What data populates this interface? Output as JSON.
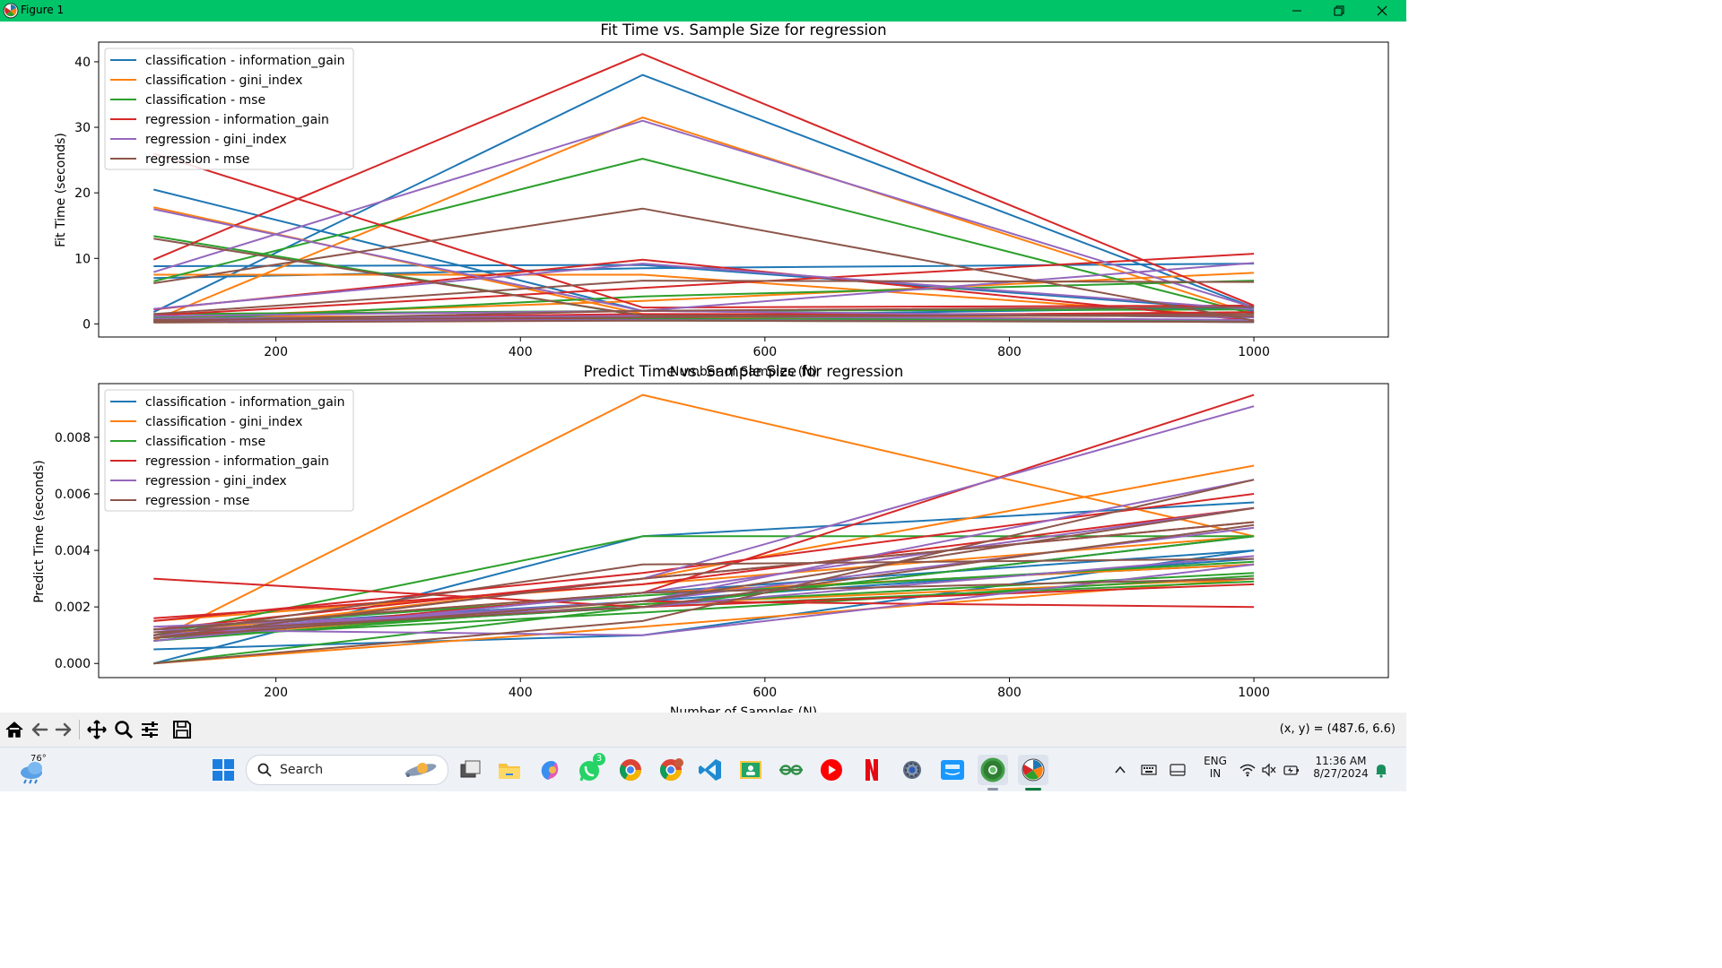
{
  "window": {
    "title": "Figure 1",
    "accent": "#00c468"
  },
  "charts": {
    "series_colors": [
      "#1f77b4",
      "#ff7f0e",
      "#2ca02c",
      "#d62728",
      "#9467bd",
      "#8c564b"
    ],
    "legend": [
      "classification - information_gain",
      "classification - gini_index",
      "classification - mse",
      "regression - information_gain",
      "regression - gini_index",
      "regression - mse"
    ],
    "fit": {
      "title": "Fit Time vs. Sample Size for regression",
      "xlabel": "Number of Samples (N)",
      "ylabel": "Fit Time (seconds)",
      "xticks": [
        "200",
        "400",
        "600",
        "800",
        "1000"
      ],
      "yticks": [
        "0",
        "10",
        "20",
        "30",
        "40"
      ]
    },
    "predict": {
      "title": "Predict Time vs. Sample Size for regression",
      "xlabel": "Number of Samples (N)",
      "ylabel": "Predict Time (seconds)",
      "xticks": [
        "200",
        "400",
        "600",
        "800",
        "1000"
      ],
      "yticks": [
        "0.000",
        "0.002",
        "0.004",
        "0.006",
        "0.008"
      ]
    }
  },
  "chart_data": [
    {
      "type": "line",
      "title": "Fit Time vs. Sample Size for regression",
      "xlabel": "Number of Samples (N)",
      "ylabel": "Fit Time (seconds)",
      "xlim": [
        55,
        1110
      ],
      "ylim": [
        -2,
        43
      ],
      "grid": false,
      "legend_position": "top-left",
      "x": [
        100,
        500,
        1000
      ],
      "series": [
        {
          "name": "classification - information_gain",
          "color": "#1f77b4",
          "lines": [
            [
              20.5,
              2.0,
              1.0
            ],
            [
              8.8,
              9.0,
              2.0
            ],
            [
              1.0,
              1.2,
              2.5
            ],
            [
              0.5,
              0.8,
              0.3
            ],
            [
              1.8,
              38.0,
              2.5
            ],
            [
              7.0,
              8.5,
              9.2
            ]
          ]
        },
        {
          "name": "classification - gini_index",
          "color": "#ff7f0e",
          "lines": [
            [
              17.8,
              1.5,
              0.5
            ],
            [
              7.5,
              7.5,
              1.0
            ],
            [
              1.2,
              1.0,
              0.5
            ],
            [
              0.6,
              31.5,
              1.5
            ],
            [
              1.0,
              3.5,
              7.8
            ],
            [
              0.3,
              0.6,
              0.4
            ]
          ]
        },
        {
          "name": "classification - mse",
          "color": "#2ca02c",
          "lines": [
            [
              13.4,
              1.2,
              0.4
            ],
            [
              6.5,
              25.2,
              1.5
            ],
            [
              1.0,
              0.8,
              0.4
            ],
            [
              0.5,
              4.2,
              6.6
            ],
            [
              1.5,
              2.0,
              2.2
            ],
            [
              0.8,
              0.5,
              0.3
            ]
          ]
        },
        {
          "name": "regression - information_gain",
          "color": "#d62728",
          "lines": [
            [
              26.0,
              2.5,
              2.8
            ],
            [
              9.8,
              41.2,
              2.8
            ],
            [
              2.2,
              9.8,
              0.5
            ],
            [
              1.3,
              5.5,
              10.7
            ],
            [
              0.7,
              1.5,
              1.5
            ],
            [
              0.3,
              1.0,
              1.8
            ]
          ]
        },
        {
          "name": "regression - gini_index",
          "color": "#9467bd",
          "lines": [
            [
              17.5,
              2.0,
              1.0
            ],
            [
              7.9,
              31.0,
              2.5
            ],
            [
              2.3,
              9.2,
              2.2
            ],
            [
              1.2,
              2.0,
              9.3
            ],
            [
              0.8,
              1.2,
              0.6
            ],
            [
              0.5,
              0.6,
              0.3
            ]
          ]
        },
        {
          "name": "regression - mse",
          "color": "#8c564b",
          "lines": [
            [
              13.0,
              1.3,
              1.2
            ],
            [
              6.2,
              17.6,
              0.5
            ],
            [
              1.5,
              6.6,
              6.4
            ],
            [
              0.6,
              1.0,
              1.5
            ],
            [
              0.4,
              2.0,
              2.6
            ],
            [
              0.2,
              0.5,
              0.3
            ]
          ]
        }
      ]
    },
    {
      "type": "line",
      "title": "Predict Time vs. Sample Size for regression",
      "xlabel": "Number of Samples (N)",
      "ylabel": "Predict Time (seconds)",
      "xlim": [
        55,
        1110
      ],
      "ylim": [
        -0.0005,
        0.0099
      ],
      "grid": false,
      "legend_position": "top-left",
      "x": [
        100,
        500,
        1000
      ],
      "series": [
        {
          "name": "classification - information_gain",
          "color": "#1f77b4",
          "lines": [
            [
              0.0,
              0.0045,
              0.0057
            ],
            [
              0.0005,
              0.001,
              0.004
            ],
            [
              0.001,
              0.002,
              0.0045
            ],
            [
              0.0009,
              0.0025,
              0.004
            ],
            [
              0.0012,
              0.0022,
              0.0037
            ],
            [
              0.0008,
              0.0025,
              0.0035
            ]
          ]
        },
        {
          "name": "classification - gini_index",
          "color": "#ff7f0e",
          "lines": [
            [
              0.0,
              0.0013,
              0.003
            ],
            [
              0.001,
              0.003,
              0.007
            ],
            [
              0.0015,
              0.0028,
              0.0045
            ],
            [
              0.0008,
              0.0095,
              0.0045
            ],
            [
              0.0012,
              0.0025,
              0.0035
            ],
            [
              0.0009,
              0.0021,
              0.003
            ]
          ]
        },
        {
          "name": "classification - mse",
          "color": "#2ca02c",
          "lines": [
            [
              0.0,
              0.002,
              0.0045
            ],
            [
              0.001,
              0.0045,
              0.0045
            ],
            [
              0.0009,
              0.0018,
              0.0031
            ],
            [
              0.0012,
              0.0024,
              0.0036
            ],
            [
              0.0008,
              0.0021,
              0.0032
            ],
            [
              0.001,
              0.002,
              0.0029
            ]
          ]
        },
        {
          "name": "regression - information_gain",
          "color": "#d62728",
          "lines": [
            [
              0.0015,
              0.0032,
              0.006
            ],
            [
              0.0016,
              0.0028,
              0.0055
            ],
            [
              0.003,
              0.002,
              0.0028
            ],
            [
              0.0009,
              0.0025,
              0.0095
            ],
            [
              0.0012,
              0.003,
              0.005
            ],
            [
              0.001,
              0.0022,
              0.002
            ]
          ]
        },
        {
          "name": "regression - gini_index",
          "color": "#9467bd",
          "lines": [
            [
              0.0012,
              0.001,
              0.0035
            ],
            [
              0.001,
              0.0022,
              0.0065
            ],
            [
              0.0008,
              0.0025,
              0.0055
            ],
            [
              0.0009,
              0.003,
              0.0091
            ],
            [
              0.0013,
              0.002,
              0.0038
            ],
            [
              0.0011,
              0.0022,
              0.0048
            ]
          ]
        },
        {
          "name": "regression - mse",
          "color": "#8c564b",
          "lines": [
            [
              0.0,
              0.0015,
              0.0065
            ],
            [
              0.001,
              0.0035,
              0.0037
            ],
            [
              0.0009,
              0.003,
              0.005
            ],
            [
              0.0011,
              0.002,
              0.0049
            ],
            [
              0.0009,
              0.0022,
              0.0055
            ],
            [
              0.0012,
              0.0025,
              0.003
            ]
          ]
        }
      ]
    }
  ],
  "toolbar": {
    "coords": "(x, y) = (487.6, 6.6)",
    "buttons": [
      "home-icon",
      "back-arrow-icon",
      "forward-arrow-icon",
      "pan-icon",
      "zoom-icon",
      "configure-subplots-icon",
      "save-icon"
    ]
  },
  "taskbar": {
    "weather_temp": "76°",
    "search_label": "Search",
    "whatsapp_badge": "3",
    "language_line1": "ENG",
    "language_line2": "IN",
    "time": "11:36 AM",
    "date": "8/27/2024",
    "apps": [
      "windows-start-icon",
      "task-view-icon",
      "file-explorer-icon",
      "copilot-icon",
      "whatsapp-icon",
      "chrome-icon",
      "chrome-profile-icon",
      "vscode-icon",
      "classroom-icon",
      "geeksforgeeks-icon",
      "youtube-icon",
      "netflix-icon",
      "settings-icon",
      "prime-video-icon",
      "chrome-alt-icon",
      "matplotlib-icon"
    ]
  }
}
